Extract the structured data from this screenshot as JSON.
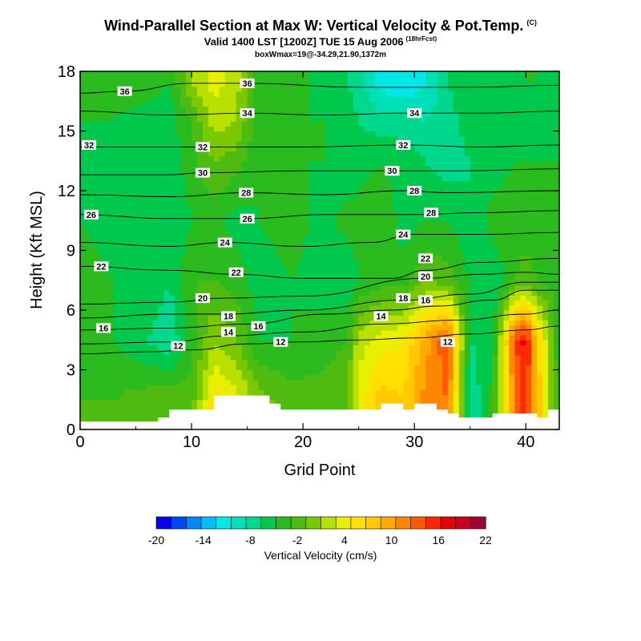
{
  "header": {
    "title": "Wind-Parallel Section at Max W: Vertical Velocity & Pot.Temp.",
    "copyright": "(C)",
    "valid": "Valid 1400 LST [1200Z] TUE 15 Aug 2006",
    "forecast_note": "(18hrFcst)",
    "box_info": "boxWmax=19@-34.29,21.90,1372m"
  },
  "chart_data": {
    "type": "heatmap",
    "xlabel": "Grid Point",
    "ylabel": "Height (Kft MSL)",
    "xlim": [
      0,
      43
    ],
    "ylim": [
      0,
      18
    ],
    "x_ticks": [
      "0",
      "10",
      "20",
      "30",
      "40"
    ],
    "y_ticks": [
      "0",
      "3",
      "6",
      "9",
      "12",
      "15",
      "18"
    ],
    "field": "Vertical Velocity (cm/s)",
    "columns": [
      {
        "x": 0,
        "w": [
          -2,
          -4,
          -3,
          -4,
          -5,
          -4,
          -3
        ]
      },
      {
        "x": 3,
        "w": [
          -2,
          -4,
          -4,
          -5,
          -5,
          -4,
          -3
        ]
      },
      {
        "x": 6,
        "w": [
          -1,
          -6,
          -4,
          -5,
          -4,
          -5,
          -3
        ]
      },
      {
        "x": 8,
        "w": [
          0,
          -8,
          -6,
          -6,
          -5,
          -5,
          -4
        ]
      },
      {
        "x": 10,
        "w": [
          -1,
          -3,
          -2,
          -4,
          -3,
          -2,
          2
        ]
      },
      {
        "x": 12,
        "w": [
          7,
          2,
          -2,
          -3,
          0,
          3,
          5
        ]
      },
      {
        "x": 14,
        "w": [
          5,
          0,
          -3,
          -5,
          -1,
          2,
          3
        ]
      },
      {
        "x": 16,
        "w": [
          1,
          -4,
          -5,
          -4,
          -4,
          -3,
          -3
        ]
      },
      {
        "x": 19,
        "w": [
          -1,
          -4,
          -4,
          -3,
          -4,
          -4,
          -3
        ]
      },
      {
        "x": 22,
        "w": [
          -1,
          -3,
          -5,
          -5,
          -4,
          -4,
          -5
        ]
      },
      {
        "x": 24,
        "w": [
          0,
          -2,
          -6,
          -3,
          -6,
          -5,
          -6
        ]
      },
      {
        "x": 25,
        "w": [
          5,
          3,
          -4,
          -3,
          -5,
          -6,
          -7
        ]
      },
      {
        "x": 27,
        "w": [
          9,
          5,
          -3,
          -2,
          -4,
          -7,
          -11
        ]
      },
      {
        "x": 29,
        "w": [
          8,
          6,
          -3,
          -5,
          -5,
          -7,
          -12
        ]
      },
      {
        "x": 31,
        "w": [
          13,
          11,
          0,
          -4,
          -6,
          -8,
          -10
        ]
      },
      {
        "x": 33,
        "w": [
          14,
          16,
          -1,
          -4,
          -7,
          -7,
          -6
        ]
      },
      {
        "x": 35,
        "w": [
          -8,
          -6,
          -4,
          -6,
          -6,
          -5,
          -4
        ]
      },
      {
        "x": 37,
        "w": [
          -3,
          -5,
          -6,
          -3,
          -5,
          -6,
          -5
        ]
      },
      {
        "x": 39,
        "w": [
          13,
          16,
          -2,
          -3,
          -4,
          -5,
          -5
        ]
      },
      {
        "x": 40,
        "w": [
          17,
          19,
          -1,
          -3,
          -4,
          -5,
          -4
        ]
      },
      {
        "x": 41,
        "w": [
          10,
          9,
          -2,
          -3,
          -4,
          -5,
          -4
        ]
      },
      {
        "x": 43,
        "w": [
          -3,
          -4,
          -3,
          -4,
          -4,
          -5,
          -5
        ]
      }
    ],
    "rows_height": [
      1.5,
      4.5,
      7.5,
      10.5,
      13.5,
      15.5,
      17.5
    ],
    "terrain": [
      {
        "x": 0,
        "h": 0.4
      },
      {
        "x": 7,
        "h": 0.4
      },
      {
        "x": 7,
        "h": 0.6
      },
      {
        "x": 8,
        "h": 0.6
      },
      {
        "x": 8,
        "h": 1.0
      },
      {
        "x": 12,
        "h": 1.0
      },
      {
        "x": 12,
        "h": 1.7
      },
      {
        "x": 17,
        "h": 1.7
      },
      {
        "x": 17,
        "h": 1.3
      },
      {
        "x": 18,
        "h": 1.3
      },
      {
        "x": 18,
        "h": 1.0
      },
      {
        "x": 27,
        "h": 1.0
      },
      {
        "x": 27,
        "h": 1.3
      },
      {
        "x": 29,
        "h": 1.3
      },
      {
        "x": 29,
        "h": 1.0
      },
      {
        "x": 30,
        "h": 1.0
      },
      {
        "x": 30,
        "h": 1.3
      },
      {
        "x": 32,
        "h": 1.3
      },
      {
        "x": 32,
        "h": 1.0
      },
      {
        "x": 33,
        "h": 1.0
      },
      {
        "x": 33,
        "h": 0.8
      },
      {
        "x": 34,
        "h": 0.8
      },
      {
        "x": 34,
        "h": 0.6
      },
      {
        "x": 37,
        "h": 0.6
      },
      {
        "x": 37,
        "h": 0.8
      },
      {
        "x": 41,
        "h": 0.8
      },
      {
        "x": 41,
        "h": 0.6
      },
      {
        "x": 42,
        "h": 0.6
      },
      {
        "x": 42,
        "h": 1.0
      },
      {
        "x": 43,
        "h": 1.0
      }
    ],
    "theta_contours": [
      {
        "value": "12",
        "pts": [
          [
            0,
            3.8
          ],
          [
            6,
            3.9
          ],
          [
            10,
            4.0
          ],
          [
            15,
            4.3
          ],
          [
            20,
            4.4
          ],
          [
            25,
            4.5
          ],
          [
            30,
            4.6
          ],
          [
            35,
            4.8
          ],
          [
            40,
            5.0
          ],
          [
            43,
            5.2
          ]
        ],
        "label": [
          8.8,
          4.2
        ]
      },
      {
        "value": "14",
        "pts": [
          [
            0,
            4.3
          ],
          [
            8,
            4.4
          ],
          [
            13,
            4.7
          ],
          [
            20,
            4.9
          ],
          [
            27,
            5.3
          ],
          [
            34,
            5.5
          ],
          [
            40,
            5.8
          ],
          [
            43,
            6.0
          ]
        ],
        "label": [
          13.3,
          4.9
        ]
      },
      {
        "value": "16",
        "pts": [
          [
            0,
            5.0
          ],
          [
            8,
            5.1
          ],
          [
            15,
            5.3
          ],
          [
            22,
            5.8
          ],
          [
            28,
            6.0
          ],
          [
            32,
            6.2
          ],
          [
            37,
            6.5
          ],
          [
            40,
            7.0
          ],
          [
            43,
            7.0
          ]
        ],
        "label": [
          2.1,
          5.1
        ]
      },
      {
        "value": "18",
        "pts": [
          [
            0,
            5.6
          ],
          [
            8,
            5.8
          ],
          [
            13,
            5.8
          ],
          [
            20,
            6.0
          ],
          [
            29,
            6.5
          ],
          [
            35,
            6.8
          ],
          [
            40,
            7.4
          ],
          [
            43,
            7.4
          ]
        ],
        "label": [
          13.3,
          5.7
        ]
      },
      {
        "value": "20",
        "pts": [
          [
            0,
            6.3
          ],
          [
            8,
            6.4
          ],
          [
            13,
            6.6
          ],
          [
            20,
            6.7
          ],
          [
            31,
            7.6
          ],
          [
            36,
            7.8
          ],
          [
            40,
            7.9
          ],
          [
            43,
            7.8
          ]
        ],
        "label": [
          11.0,
          6.6
        ]
      },
      {
        "value": "22",
        "pts": [
          [
            0,
            8.2
          ],
          [
            8,
            8.0
          ],
          [
            14,
            7.8
          ],
          [
            20,
            7.6
          ],
          [
            28,
            7.6
          ],
          [
            31,
            8.0
          ],
          [
            36,
            8.4
          ],
          [
            43,
            8.6
          ]
        ],
        "label": [
          1.9,
          8.2
        ]
      },
      {
        "value": "24",
        "pts": [
          [
            0,
            9.4
          ],
          [
            8,
            9.2
          ],
          [
            13,
            9.4
          ],
          [
            20,
            9.2
          ],
          [
            26,
            9.4
          ],
          [
            30,
            9.8
          ],
          [
            36,
            9.8
          ],
          [
            43,
            9.9
          ]
        ],
        "label": [
          13.0,
          9.4
        ]
      },
      {
        "value": "26",
        "pts": [
          [
            0,
            10.8
          ],
          [
            8,
            10.6
          ],
          [
            15,
            10.6
          ],
          [
            22,
            10.8
          ],
          [
            30,
            10.8
          ],
          [
            36,
            10.9
          ],
          [
            43,
            11.0
          ]
        ],
        "label": [
          1.0,
          10.8
        ]
      },
      {
        "value": "28",
        "pts": [
          [
            0,
            11.8
          ],
          [
            8,
            11.7
          ],
          [
            15,
            11.9
          ],
          [
            22,
            11.8
          ],
          [
            29,
            12.0
          ],
          [
            33,
            11.9
          ],
          [
            43,
            12.0
          ]
        ],
        "label": [
          14.9,
          11.9
        ]
      },
      {
        "value": "30",
        "pts": [
          [
            0,
            12.8
          ],
          [
            8,
            12.8
          ],
          [
            11,
            12.9
          ],
          [
            20,
            13.0
          ],
          [
            28,
            13.0
          ],
          [
            34,
            13.0
          ],
          [
            43,
            13.1
          ]
        ],
        "label": [
          11.0,
          12.9
        ]
      },
      {
        "value": "32",
        "pts": [
          [
            0,
            14.2
          ],
          [
            8,
            14.2
          ],
          [
            11,
            14.2
          ],
          [
            20,
            14.2
          ],
          [
            29,
            14.3
          ],
          [
            36,
            14.2
          ],
          [
            43,
            14.3
          ]
        ],
        "label": [
          0.8,
          14.3
        ]
      },
      {
        "value": "34",
        "pts": [
          [
            0,
            16.0
          ],
          [
            8,
            15.8
          ],
          [
            15,
            15.9
          ],
          [
            22,
            15.8
          ],
          [
            29,
            15.9
          ],
          [
            36,
            15.9
          ],
          [
            43,
            16.0
          ]
        ],
        "label": [
          30.0,
          15.9
        ]
      },
      {
        "value": "36",
        "pts": [
          [
            0,
            16.9
          ],
          [
            4,
            17.0
          ],
          [
            10,
            17.4
          ],
          [
            15,
            17.4
          ],
          [
            25,
            17.2
          ],
          [
            35,
            17.2
          ],
          [
            43,
            17.3
          ]
        ],
        "label": [
          4.0,
          17.0
        ]
      }
    ],
    "extra_contour_labels": [
      {
        "value": "36",
        "x": 15.0,
        "y": 17.4
      },
      {
        "value": "34",
        "x": 15.0,
        "y": 15.9
      },
      {
        "value": "32",
        "x": 11.0,
        "y": 14.2
      },
      {
        "value": "32",
        "x": 29.0,
        "y": 14.3
      },
      {
        "value": "30",
        "x": 28.0,
        "y": 13.0
      },
      {
        "value": "28",
        "x": 30.0,
        "y": 12.0
      },
      {
        "value": "28",
        "x": 31.5,
        "y": 10.9
      },
      {
        "value": "26",
        "x": 15.0,
        "y": 10.6
      },
      {
        "value": "24",
        "x": 29.0,
        "y": 9.8
      },
      {
        "value": "22",
        "x": 14.0,
        "y": 7.9
      },
      {
        "value": "22",
        "x": 31.0,
        "y": 8.6
      },
      {
        "value": "20",
        "x": 31.0,
        "y": 7.7
      },
      {
        "value": "18",
        "x": 29.0,
        "y": 6.6
      },
      {
        "value": "16",
        "x": 16.0,
        "y": 5.2
      },
      {
        "value": "16",
        "x": 31.0,
        "y": 6.5
      },
      {
        "value": "14",
        "x": 27.0,
        "y": 5.7
      },
      {
        "value": "12",
        "x": 18.0,
        "y": 4.4
      },
      {
        "value": "12",
        "x": 33.0,
        "y": 4.4
      }
    ],
    "colorbar": {
      "label": "Vertical Velocity (cm/s)",
      "tick_labels": [
        "-20",
        "-14",
        "-8",
        "-2",
        "4",
        "10",
        "16",
        "22"
      ],
      "colors": [
        "#0a00f5",
        "#0045ff",
        "#0087ff",
        "#00bdff",
        "#00e8e8",
        "#00e0b8",
        "#00d88e",
        "#00c84d",
        "#2bbb1f",
        "#4ebb10",
        "#7cc800",
        "#b8e000",
        "#e8f000",
        "#ffe000",
        "#ffc800",
        "#ffaa00",
        "#ff8700",
        "#ff5a00",
        "#ff2800",
        "#e80000",
        "#c80020",
        "#a00038"
      ]
    }
  }
}
